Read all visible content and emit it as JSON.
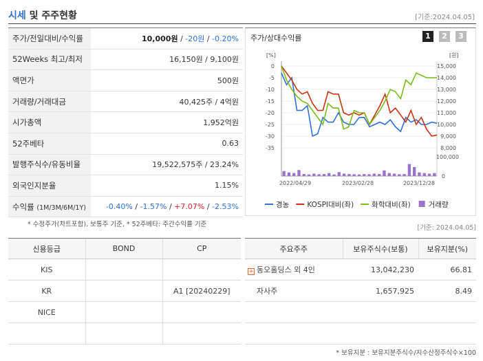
{
  "header": {
    "title_main": "시세",
    "title_rest": " 및 주주현황",
    "date": "[기준:2024.04.05]"
  },
  "quote": [
    {
      "label": "주가/전일대비/수익률",
      "price": "10,000원",
      "sep1": " / ",
      "change": "-20원",
      "sep2": " / ",
      "rate": "-0.20%"
    },
    {
      "label": "52Weeks 최고/최저",
      "value": "16,150원 / 9,100원"
    },
    {
      "label": "액면가",
      "value": "500원"
    },
    {
      "label": "거래량/거래대금",
      "value": "40,425주 / 4억원"
    },
    {
      "label": "시가총액",
      "value": "1,952억원"
    },
    {
      "label": "52주베타",
      "value": "0.63"
    },
    {
      "label": "발행주식수/유동비율",
      "value": "19,522,575주 / 23.24%"
    },
    {
      "label": "외국인지분율",
      "value": "1.15%"
    },
    {
      "label": "수익률",
      "label_sub": "(1M/3M/6M/1Y)",
      "r1": "-0.40%",
      "r2": "-1.57%",
      "r3": "+7.07%",
      "r4": "-2.53%",
      "sep": "/"
    }
  ],
  "note1": "* 수정주가(차트포함), 보통주 기준, * 52주베타: 주간수익률 기준",
  "chart_panel": {
    "title": "주가/상대수익률",
    "tabs": [
      "1",
      "2",
      "3"
    ]
  },
  "chart_data": {
    "type": "line",
    "left_axis_unit": "[%]",
    "right_axis_unit": "[원]",
    "left_ticks": [
      "0",
      "-5",
      "-10",
      "-15",
      "-20",
      "-25",
      "-30",
      "-35"
    ],
    "right_ticks": [
      "15,000",
      "14,000",
      "13,000",
      "12,000",
      "11,000",
      "10,000",
      "9,000",
      "8,000"
    ],
    "volume_ticks": [
      "100,000",
      "0"
    ],
    "x_labels": [
      "2022/04/29",
      "2023/02/28",
      "2023/12/28"
    ],
    "ylim": [
      -35,
      0
    ],
    "series": [
      {
        "name": "경농",
        "color": "#2f6fd6",
        "values": [
          -3,
          -8,
          -5,
          -19,
          -19,
          -17,
          -30,
          -29,
          -22,
          -24,
          -24,
          -20,
          -24,
          -25,
          -25,
          -22,
          -22,
          -26,
          -25,
          -24,
          -25,
          -23,
          -26,
          -28,
          -22,
          -24,
          -23,
          -25,
          -25,
          -24,
          -24.5
        ]
      },
      {
        "name": "KOSPI대비(좌)",
        "color": "#c8320e",
        "values": [
          0,
          -3,
          -6,
          -10,
          -12,
          -11,
          -16,
          -19,
          -19,
          -11,
          -12,
          -12,
          -20,
          -21,
          -20,
          -21,
          -20,
          -25,
          -21,
          -17,
          -12,
          -20,
          -18,
          -21,
          -24,
          -19,
          -25,
          -22,
          -27,
          -30,
          -29.5
        ]
      },
      {
        "name": "화학대비(좌)",
        "color": "#7abb16",
        "values": [
          0,
          -6,
          -10,
          -13,
          -15,
          -16,
          -19,
          -22,
          -25,
          -16,
          -18,
          -18,
          -27,
          -26,
          -19,
          -20,
          -20,
          -25,
          -22,
          -19,
          -15,
          -10,
          -11,
          -14,
          -6,
          -8,
          -3,
          -4,
          -5,
          -5,
          -5
        ]
      },
      {
        "name": "거래량",
        "color": "#9a74c9",
        "volume": [
          25,
          18,
          15,
          30,
          10,
          8,
          12,
          9,
          10,
          15,
          8,
          20,
          12,
          10,
          9,
          8,
          10,
          9,
          12,
          10,
          28,
          15,
          12,
          9,
          10,
          60,
          45,
          18,
          15,
          12,
          15
        ]
      }
    ]
  },
  "date2": "[기준: 2024.04.05]",
  "credit": {
    "headers": [
      "신용등급",
      "BOND",
      "CP"
    ],
    "rows": [
      [
        "KIS",
        "",
        ""
      ],
      [
        "KR",
        "",
        "A1 [20240229]"
      ],
      [
        "NICE",
        "",
        ""
      ],
      [
        "",
        "",
        ""
      ]
    ]
  },
  "holders": {
    "headers": [
      "주요주주",
      "보유주식수(보통)",
      "보유지분(%)"
    ],
    "rows": [
      {
        "name": "동오홀딩스 외 4인",
        "shares": "13,042,230",
        "pct": "66.81",
        "expand": true
      },
      {
        "name": "자사주",
        "shares": "1,657,925",
        "pct": "8.49",
        "expand": false
      }
    ]
  },
  "note2": "* 보유지분 : 보유지분주식수/지수산정주식수×100"
}
